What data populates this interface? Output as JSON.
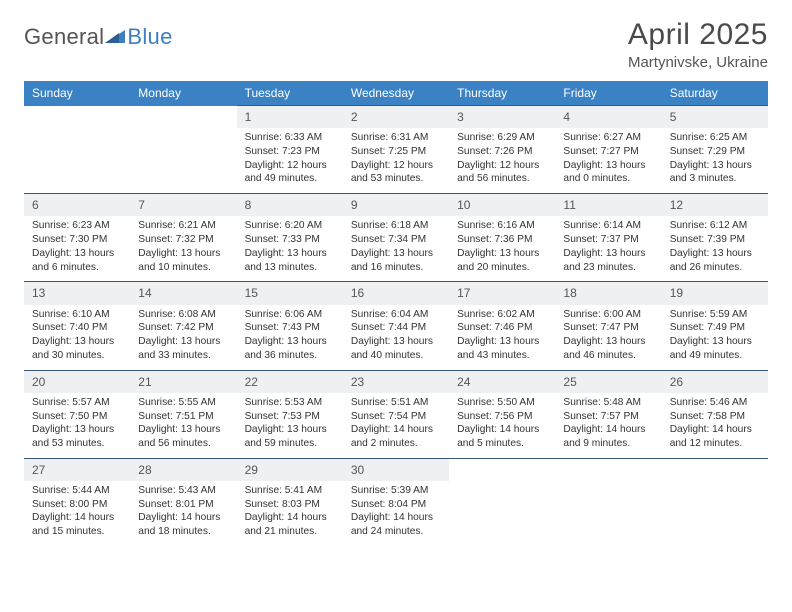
{
  "logo": {
    "text1": "General",
    "text2": "Blue"
  },
  "title": "April 2025",
  "location": "Martynivske, Ukraine",
  "colors": {
    "header_bg": "#3b82c4",
    "header_fg": "#ffffff",
    "daynum_bg": "#eef0f2",
    "daynum_border": "#34597a",
    "text": "#333333",
    "title_color": "#4a4a4a",
    "logo_gray": "#555555",
    "logo_blue": "#3f7fbf"
  },
  "day_names": [
    "Sunday",
    "Monday",
    "Tuesday",
    "Wednesday",
    "Thursday",
    "Friday",
    "Saturday"
  ],
  "weeks": [
    [
      null,
      null,
      {
        "n": "1",
        "sr": "Sunrise: 6:33 AM",
        "ss": "Sunset: 7:23 PM",
        "dl": "Daylight: 12 hours and 49 minutes."
      },
      {
        "n": "2",
        "sr": "Sunrise: 6:31 AM",
        "ss": "Sunset: 7:25 PM",
        "dl": "Daylight: 12 hours and 53 minutes."
      },
      {
        "n": "3",
        "sr": "Sunrise: 6:29 AM",
        "ss": "Sunset: 7:26 PM",
        "dl": "Daylight: 12 hours and 56 minutes."
      },
      {
        "n": "4",
        "sr": "Sunrise: 6:27 AM",
        "ss": "Sunset: 7:27 PM",
        "dl": "Daylight: 13 hours and 0 minutes."
      },
      {
        "n": "5",
        "sr": "Sunrise: 6:25 AM",
        "ss": "Sunset: 7:29 PM",
        "dl": "Daylight: 13 hours and 3 minutes."
      }
    ],
    [
      {
        "n": "6",
        "sr": "Sunrise: 6:23 AM",
        "ss": "Sunset: 7:30 PM",
        "dl": "Daylight: 13 hours and 6 minutes."
      },
      {
        "n": "7",
        "sr": "Sunrise: 6:21 AM",
        "ss": "Sunset: 7:32 PM",
        "dl": "Daylight: 13 hours and 10 minutes."
      },
      {
        "n": "8",
        "sr": "Sunrise: 6:20 AM",
        "ss": "Sunset: 7:33 PM",
        "dl": "Daylight: 13 hours and 13 minutes."
      },
      {
        "n": "9",
        "sr": "Sunrise: 6:18 AM",
        "ss": "Sunset: 7:34 PM",
        "dl": "Daylight: 13 hours and 16 minutes."
      },
      {
        "n": "10",
        "sr": "Sunrise: 6:16 AM",
        "ss": "Sunset: 7:36 PM",
        "dl": "Daylight: 13 hours and 20 minutes."
      },
      {
        "n": "11",
        "sr": "Sunrise: 6:14 AM",
        "ss": "Sunset: 7:37 PM",
        "dl": "Daylight: 13 hours and 23 minutes."
      },
      {
        "n": "12",
        "sr": "Sunrise: 6:12 AM",
        "ss": "Sunset: 7:39 PM",
        "dl": "Daylight: 13 hours and 26 minutes."
      }
    ],
    [
      {
        "n": "13",
        "sr": "Sunrise: 6:10 AM",
        "ss": "Sunset: 7:40 PM",
        "dl": "Daylight: 13 hours and 30 minutes."
      },
      {
        "n": "14",
        "sr": "Sunrise: 6:08 AM",
        "ss": "Sunset: 7:42 PM",
        "dl": "Daylight: 13 hours and 33 minutes."
      },
      {
        "n": "15",
        "sr": "Sunrise: 6:06 AM",
        "ss": "Sunset: 7:43 PM",
        "dl": "Daylight: 13 hours and 36 minutes."
      },
      {
        "n": "16",
        "sr": "Sunrise: 6:04 AM",
        "ss": "Sunset: 7:44 PM",
        "dl": "Daylight: 13 hours and 40 minutes."
      },
      {
        "n": "17",
        "sr": "Sunrise: 6:02 AM",
        "ss": "Sunset: 7:46 PM",
        "dl": "Daylight: 13 hours and 43 minutes."
      },
      {
        "n": "18",
        "sr": "Sunrise: 6:00 AM",
        "ss": "Sunset: 7:47 PM",
        "dl": "Daylight: 13 hours and 46 minutes."
      },
      {
        "n": "19",
        "sr": "Sunrise: 5:59 AM",
        "ss": "Sunset: 7:49 PM",
        "dl": "Daylight: 13 hours and 49 minutes."
      }
    ],
    [
      {
        "n": "20",
        "sr": "Sunrise: 5:57 AM",
        "ss": "Sunset: 7:50 PM",
        "dl": "Daylight: 13 hours and 53 minutes."
      },
      {
        "n": "21",
        "sr": "Sunrise: 5:55 AM",
        "ss": "Sunset: 7:51 PM",
        "dl": "Daylight: 13 hours and 56 minutes."
      },
      {
        "n": "22",
        "sr": "Sunrise: 5:53 AM",
        "ss": "Sunset: 7:53 PM",
        "dl": "Daylight: 13 hours and 59 minutes."
      },
      {
        "n": "23",
        "sr": "Sunrise: 5:51 AM",
        "ss": "Sunset: 7:54 PM",
        "dl": "Daylight: 14 hours and 2 minutes."
      },
      {
        "n": "24",
        "sr": "Sunrise: 5:50 AM",
        "ss": "Sunset: 7:56 PM",
        "dl": "Daylight: 14 hours and 5 minutes."
      },
      {
        "n": "25",
        "sr": "Sunrise: 5:48 AM",
        "ss": "Sunset: 7:57 PM",
        "dl": "Daylight: 14 hours and 9 minutes."
      },
      {
        "n": "26",
        "sr": "Sunrise: 5:46 AM",
        "ss": "Sunset: 7:58 PM",
        "dl": "Daylight: 14 hours and 12 minutes."
      }
    ],
    [
      {
        "n": "27",
        "sr": "Sunrise: 5:44 AM",
        "ss": "Sunset: 8:00 PM",
        "dl": "Daylight: 14 hours and 15 minutes."
      },
      {
        "n": "28",
        "sr": "Sunrise: 5:43 AM",
        "ss": "Sunset: 8:01 PM",
        "dl": "Daylight: 14 hours and 18 minutes."
      },
      {
        "n": "29",
        "sr": "Sunrise: 5:41 AM",
        "ss": "Sunset: 8:03 PM",
        "dl": "Daylight: 14 hours and 21 minutes."
      },
      {
        "n": "30",
        "sr": "Sunrise: 5:39 AM",
        "ss": "Sunset: 8:04 PM",
        "dl": "Daylight: 14 hours and 24 minutes."
      },
      null,
      null,
      null
    ]
  ]
}
